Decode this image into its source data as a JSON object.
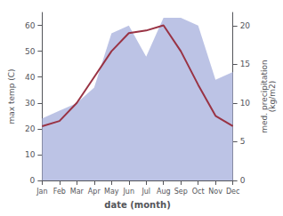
{
  "chart_data": {
    "type": "line",
    "xlabel": "date (month)",
    "ylabel": "max temp (C)",
    "y2label": "med. precipitation\n(kg/m2)",
    "categories": [
      "Jan",
      "Feb",
      "Mar",
      "Apr",
      "May",
      "Jun",
      "Jul",
      "Aug",
      "Sep",
      "Oct",
      "Nov",
      "Dec"
    ],
    "series": [
      {
        "type": "area",
        "axis": "y2",
        "color": "#b0b8e0",
        "values": [
          8,
          9,
          10,
          12,
          19,
          20,
          16,
          21,
          21,
          20,
          13,
          14
        ]
      },
      {
        "type": "line",
        "color": "#993344",
        "values": [
          21,
          23,
          30,
          40,
          50,
          57,
          58,
          60,
          50,
          37,
          25,
          21
        ]
      }
    ],
    "ylim": [
      0,
      65
    ],
    "yticks": [
      0,
      10,
      20,
      30,
      40,
      50,
      60
    ],
    "y2lim": [
      0,
      21.7
    ],
    "y2ticks": [
      0,
      5,
      10,
      15,
      20
    ],
    "grid": false
  }
}
